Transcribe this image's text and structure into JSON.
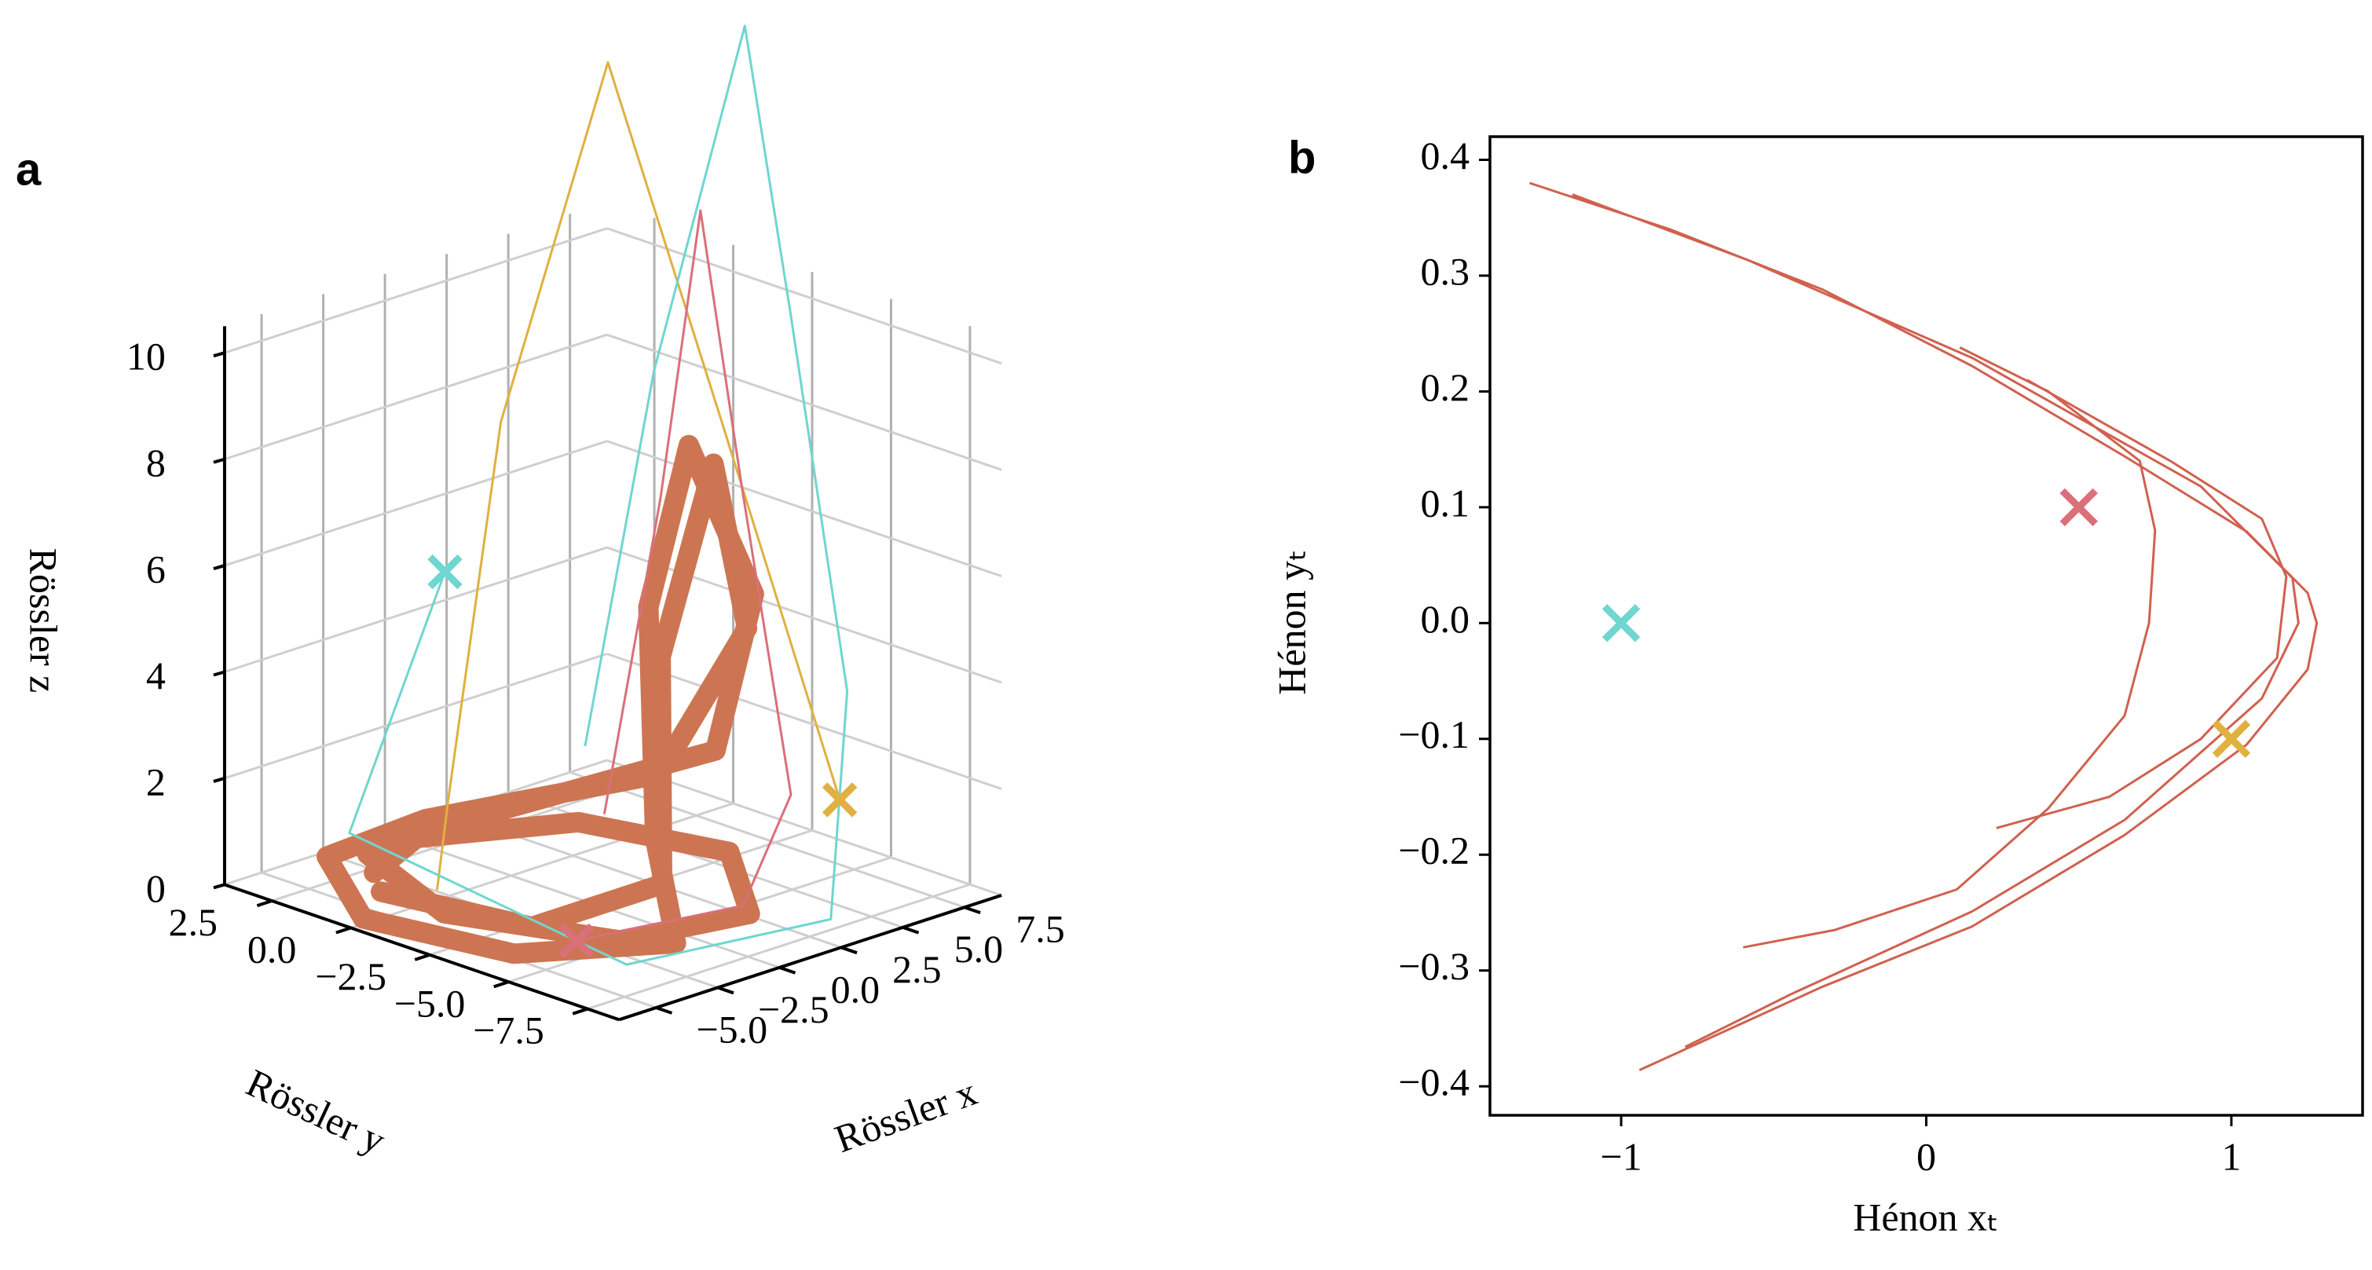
{
  "chart_data": [
    {
      "type": "scatter3d",
      "panel_label": "a",
      "xlabel": "Rössler x",
      "ylabel": "Rössler y",
      "zlabel": "Rössler z",
      "xlim": [
        -6.5,
        9
      ],
      "ylim": [
        -8.5,
        4
      ],
      "zlim": [
        0,
        10.5
      ],
      "xticks": [
        {
          "value": -5,
          "label": "−5.0"
        },
        {
          "value": -2.5,
          "label": "−2.5"
        },
        {
          "value": 0,
          "label": "0.0"
        },
        2.5,
        {
          "value": 5,
          "label": "5.0"
        },
        7.5
      ],
      "yticks": [
        2.5,
        {
          "value": 0,
          "label": "0.0"
        },
        {
          "value": -2.5,
          "label": "−2.5"
        },
        {
          "value": -5,
          "label": "−5.0"
        },
        {
          "value": -7.5,
          "label": "−7.5"
        }
      ],
      "zticks": [
        0,
        2,
        4,
        6,
        8,
        10
      ],
      "grid": true,
      "series": [
        {
          "color": "#cd7552",
          "x": [
            -3,
            0,
            4,
            5,
            2,
            -2,
            -4,
            -2,
            3,
            7,
            6,
            4,
            3,
            2,
            -1,
            -5,
            -6,
            -3,
            1,
            6,
            7,
            5,
            3.5,
            1,
            -3,
            -4
          ],
          "y": [
            2,
            3,
            1,
            -3,
            -6,
            -5,
            -1,
            3,
            2.5,
            -1,
            -3,
            -2.5,
            -2,
            -3,
            -6,
            -4,
            0,
            3.5,
            3.5,
            0,
            -2,
            -2.5,
            -2,
            -4,
            -3,
            1
          ],
          "z": [
            0.1,
            0.1,
            0.2,
            0.3,
            0.2,
            0.1,
            0.1,
            0.1,
            0.3,
            1.5,
            5,
            8,
            5,
            1,
            0.1,
            0.1,
            0.1,
            0.1,
            0.2,
            1,
            4,
            7.5,
            4,
            0.5,
            0.1,
            0.1
          ]
        },
        {
          "color": "#e0b040",
          "x": [
            8.2,
            6,
            3.6,
            1.5,
            0,
            -3
          ],
          "y": [
            -4,
            -2,
            -0.25,
            1.5,
            2,
            0
          ],
          "z": [
            1,
            8,
            14.8,
            8,
            1,
            0.2
          ]
        },
        {
          "color": "#6fd6d0",
          "x": [
            -2.3,
            -4,
            -3,
            4,
            8.5,
            7.5,
            6.4,
            4.5,
            3
          ],
          "y": [
            0.3,
            2,
            -6,
            -7,
            -4,
            -3,
            -2.4,
            -1,
            0
          ],
          "z": [
            6,
            1,
            0,
            0,
            3,
            10,
            15.5,
            9,
            2
          ]
        },
        {
          "color": "#d9707a",
          "x": [
            -2.6,
            3,
            7.5,
            6,
            4.6,
            3.5,
            2.5
          ],
          "y": [
            -4.1,
            -5,
            -3,
            -2.6,
            -2.4,
            -2,
            -1
          ],
          "z": [
            0,
            0,
            1,
            7,
            12.3,
            7,
            1
          ]
        }
      ],
      "markers": {
        "x": [
          -2.3,
          8.2,
          -2.6
        ],
        "y": [
          0.3,
          -4,
          -4.1
        ],
        "z": [
          6,
          1,
          0
        ],
        "colors": [
          "#6fd6d0",
          "#e0b040",
          "#d9707a"
        ]
      }
    },
    {
      "type": "line",
      "panel_label": "b",
      "xlabel": "Hénon xₜ",
      "ylabel": "Hénon yₜ",
      "xlim": [
        -1.43,
        1.43
      ],
      "ylim": [
        -0.425,
        0.42
      ],
      "xticks": [
        {
          "value": -1,
          "label": "−1"
        },
        0,
        1
      ],
      "yticks": [
        0.4,
        0.3,
        0.2,
        0.1,
        {
          "value": 0,
          "label": "0.0"
        },
        {
          "value": -0.1,
          "label": "−0.1"
        },
        {
          "value": -0.2,
          "label": "−0.2"
        },
        {
          "value": -0.3,
          "label": "−0.3"
        },
        {
          "value": -0.4,
          "label": "−0.4"
        }
      ],
      "series": [
        {
          "color": "#d0614f",
          "x": [
            -1.3,
            -0.84,
            -0.34,
            0.15,
            0.65,
            1.05,
            1.25,
            1.28,
            1.25,
            1.05,
            0.65,
            0.15,
            -0.34,
            -0.94,
            null,
            -1.16,
            -0.59,
            0.15,
            0.9,
            1.2,
            1.22,
            1.1,
            0.65,
            0.15,
            -0.44,
            -0.79,
            null,
            0.11,
            0.4,
            0.7,
            0.75,
            0.73,
            0.65,
            0.4,
            0.1,
            -0.3,
            -0.6,
            null,
            0.33,
            0.8,
            1.1,
            1.18,
            1.15,
            0.9,
            0.6,
            0.23
          ],
          "y": [
            0.38,
            0.34,
            0.288,
            0.222,
            0.144,
            0.079,
            0.026,
            0,
            -0.04,
            -0.105,
            -0.183,
            -0.262,
            -0.314,
            -0.386,
            null,
            0.37,
            0.314,
            0.229,
            0.118,
            0.039,
            0,
            -0.065,
            -0.17,
            -0.249,
            -0.32,
            -0.366,
            null,
            0.238,
            0.2,
            0.14,
            0.08,
            0,
            -0.08,
            -0.16,
            -0.23,
            -0.265,
            -0.28,
            null,
            0.21,
            0.14,
            0.09,
            0.04,
            -0.03,
            -0.1,
            -0.15,
            -0.177
          ]
        }
      ],
      "markers": {
        "x": [
          -1,
          0.5,
          1
        ],
        "y": [
          0,
          0.1,
          -0.1
        ],
        "colors": [
          "#6fd6d0",
          "#d9707a",
          "#e0b040"
        ]
      }
    }
  ]
}
